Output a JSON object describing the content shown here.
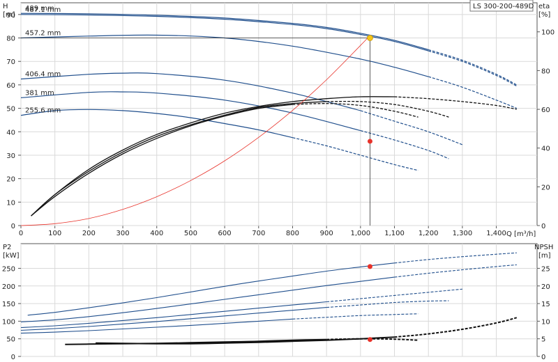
{
  "chart_data": [
    {
      "type": "line",
      "title": "LS 300-200-489D",
      "xlabel": "Q [m³/h]",
      "ylabel": "H\n[m]",
      "y2label": "eta\n[%]",
      "xlim": [
        0,
        1520
      ],
      "ylim": [
        0,
        95
      ],
      "y2lim": [
        0,
        115
      ],
      "x_ticks": [
        0,
        100,
        200,
        300,
        400,
        500,
        600,
        700,
        800,
        900,
        1000,
        1100,
        1200,
        1300,
        1400
      ],
      "x_tick_labels": [
        "0",
        "100",
        "200",
        "300",
        "400",
        "500",
        "600",
        "700",
        "800",
        "900",
        "1,000",
        "1,100",
        "1,200",
        "1,300",
        "1,400"
      ],
      "y_ticks": [
        0,
        10,
        20,
        30,
        40,
        50,
        60,
        70,
        80,
        90
      ],
      "y2_ticks": [
        0,
        20,
        40,
        60,
        80,
        100
      ],
      "grid": true,
      "colors": {
        "head": "#1f4e8c",
        "eta": "#111111",
        "system": "#e8322a",
        "duty": "#e8322a",
        "duty_bep": "#f5c518",
        "crosshair": "#333333"
      },
      "series": [
        {
          "name": "489 mm",
          "kind": "head",
          "x": [
            0,
            200,
            400,
            600,
            800,
            900,
            1000,
            1100,
            1200,
            1300,
            1400,
            1460
          ],
          "y": [
            90.5,
            90.3,
            89.7,
            88.5,
            86.2,
            84.5,
            82.0,
            79.0,
            75.0,
            70.5,
            64.5,
            60.0
          ]
        },
        {
          "name": "487.1 mm",
          "kind": "head",
          "x": [
            0,
            200,
            400,
            600,
            800,
            900,
            1000,
            1100,
            1200,
            1300,
            1400,
            1460
          ],
          "y": [
            90.0,
            89.8,
            89.2,
            88.0,
            85.7,
            84.0,
            81.5,
            78.5,
            74.5,
            70.0,
            64.0,
            59.5
          ]
        },
        {
          "name": "457.2 mm",
          "kind": "head",
          "x": [
            0,
            200,
            400,
            600,
            800,
            1000,
            1100,
            1200,
            1300,
            1400,
            1460
          ],
          "y": [
            80.0,
            80.8,
            81.2,
            80.0,
            76.5,
            71.0,
            67.5,
            63.5,
            59.0,
            53.5,
            50.0
          ]
        },
        {
          "name": "406.4 mm",
          "kind": "head",
          "x": [
            0,
            200,
            300,
            400,
            600,
            800,
            1000,
            1100,
            1200,
            1300
          ],
          "y": [
            62.5,
            64.5,
            65.0,
            64.8,
            62.0,
            56.5,
            49.0,
            44.5,
            40.0,
            34.5
          ]
        },
        {
          "name": "381 mm",
          "kind": "head",
          "x": [
            0,
            200,
            300,
            400,
            600,
            800,
            1000,
            1100,
            1200,
            1260
          ],
          "y": [
            54.5,
            56.8,
            57.0,
            56.5,
            53.5,
            48.0,
            40.5,
            36.5,
            32.0,
            28.5
          ]
        },
        {
          "name": "255.6 mm",
          "kind": "head",
          "x": [
            0,
            100,
            200,
            300,
            400,
            500,
            600,
            700,
            800,
            900,
            1000,
            1100,
            1170
          ],
          "y": [
            47.0,
            49.0,
            49.5,
            49.0,
            47.8,
            46.0,
            43.5,
            40.8,
            37.5,
            34.0,
            30.0,
            26.0,
            23.5
          ]
        },
        {
          "name": "",
          "kind": "eta",
          "x": [
            30,
            100,
            200,
            300,
            400,
            500,
            600,
            700,
            800,
            900,
            1000,
            1100,
            1200,
            1300,
            1400,
            1460
          ],
          "y": [
            5,
            16,
            29,
            39,
            47,
            53,
            58,
            61.5,
            64,
            65.5,
            66.5,
            66.5,
            65.5,
            64,
            62,
            60
          ]
        },
        {
          "name": "",
          "kind": "eta",
          "x": [
            30,
            100,
            200,
            300,
            400,
            500,
            600,
            700,
            800,
            900,
            1000,
            1100,
            1200,
            1260
          ],
          "y": [
            5,
            16,
            28,
            38,
            46,
            52,
            57,
            61,
            63,
            64,
            64,
            62.5,
            59,
            56
          ]
        },
        {
          "name": "",
          "kind": "eta",
          "x": [
            30,
            100,
            200,
            300,
            400,
            500,
            600,
            700,
            800,
            900,
            1000,
            1100,
            1170
          ],
          "y": [
            5,
            15,
            27,
            37,
            45,
            51.5,
            56.5,
            60.5,
            62.5,
            63,
            62,
            59,
            56
          ]
        },
        {
          "name": "",
          "kind": "system",
          "x": [
            0,
            100,
            200,
            300,
            400,
            500,
            600,
            700,
            800,
            900,
            1000,
            1028
          ],
          "y": [
            0,
            0.8,
            3.0,
            6.9,
            12.3,
            19.2,
            27.6,
            37.6,
            49.1,
            62.2,
            76.8,
            81.1
          ]
        }
      ],
      "duty_point": {
        "x": 1028,
        "y": 80.0
      },
      "duty_eta": {
        "x": 1028,
        "y": 43.5
      },
      "labels": [
        "489 mm",
        "487.1 mm",
        "457.2 mm",
        "406.4 mm",
        "381 mm",
        "255.6 mm"
      ]
    },
    {
      "type": "line",
      "xlim": [
        0,
        1520
      ],
      "ylabel": "P2\n[kW]",
      "y2label": "NPSH\n[m]",
      "ylim": [
        0,
        320
      ],
      "y2lim": [
        0,
        32
      ],
      "y_ticks": [
        0,
        50,
        100,
        150,
        200,
        250
      ],
      "y2_ticks": [
        0,
        5,
        10,
        15,
        20,
        25
      ],
      "grid": true,
      "series": [
        {
          "name": "",
          "kind": "power",
          "x": [
            20,
            100,
            200,
            300,
            400,
            500,
            600,
            700,
            800,
            900,
            1000,
            1100,
            1200,
            1300,
            1400,
            1460
          ],
          "y": [
            117,
            125,
            138,
            152,
            167,
            183,
            199,
            214,
            228,
            242,
            254,
            265,
            275,
            283,
            290,
            294
          ]
        },
        {
          "name": "",
          "kind": "power",
          "x": [
            0,
            100,
            200,
            300,
            400,
            500,
            600,
            700,
            800,
            900,
            1000,
            1100,
            1200,
            1300,
            1400,
            1460
          ],
          "y": [
            98,
            104,
            113,
            124,
            136,
            149,
            162,
            175,
            188,
            201,
            213,
            225,
            236,
            246,
            255,
            260
          ]
        },
        {
          "name": "",
          "kind": "power",
          "x": [
            0,
            100,
            200,
            300,
            400,
            500,
            600,
            700,
            800,
            900,
            1000,
            1100,
            1200,
            1300
          ],
          "y": [
            82,
            87,
            94,
            102,
            110,
            119,
            128,
            137,
            146,
            155,
            164,
            173,
            182,
            191
          ]
        },
        {
          "name": "",
          "kind": "power",
          "x": [
            0,
            100,
            200,
            300,
            400,
            500,
            600,
            700,
            800,
            900,
            1000,
            1100,
            1200,
            1260
          ],
          "y": [
            74,
            79,
            85,
            92,
            99,
            107,
            115,
            123,
            131,
            139,
            146,
            153,
            157,
            158
          ]
        },
        {
          "name": "",
          "kind": "power",
          "x": [
            0,
            100,
            200,
            300,
            400,
            500,
            600,
            700,
            800,
            900,
            1000,
            1100,
            1170
          ],
          "y": [
            66,
            69,
            73,
            78,
            83,
            88,
            94,
            100,
            106,
            111,
            116,
            119,
            121
          ]
        },
        {
          "name": "",
          "kind": "npsh",
          "x": [
            220,
            300,
            400,
            500,
            600,
            700,
            800,
            900,
            1000,
            1100,
            1200,
            1300,
            1400,
            1460
          ],
          "y": [
            3.8,
            3.7,
            3.6,
            3.6,
            3.8,
            4.0,
            4.3,
            4.6,
            5.0,
            5.5,
            6.4,
            7.7,
            9.5,
            11.0
          ]
        },
        {
          "name": "",
          "kind": "npsh",
          "x": [
            130,
            200,
            300,
            400,
            500,
            600,
            700,
            800,
            900,
            1000,
            1100,
            1170
          ],
          "y": [
            3.4,
            3.5,
            3.6,
            3.7,
            3.9,
            4.1,
            4.3,
            4.6,
            4.8,
            5.0,
            4.9,
            4.6
          ]
        }
      ],
      "duty_power": {
        "x": 1028,
        "y": 255
      },
      "duty_npsh": {
        "x": 1028,
        "y": 4.8
      }
    }
  ]
}
